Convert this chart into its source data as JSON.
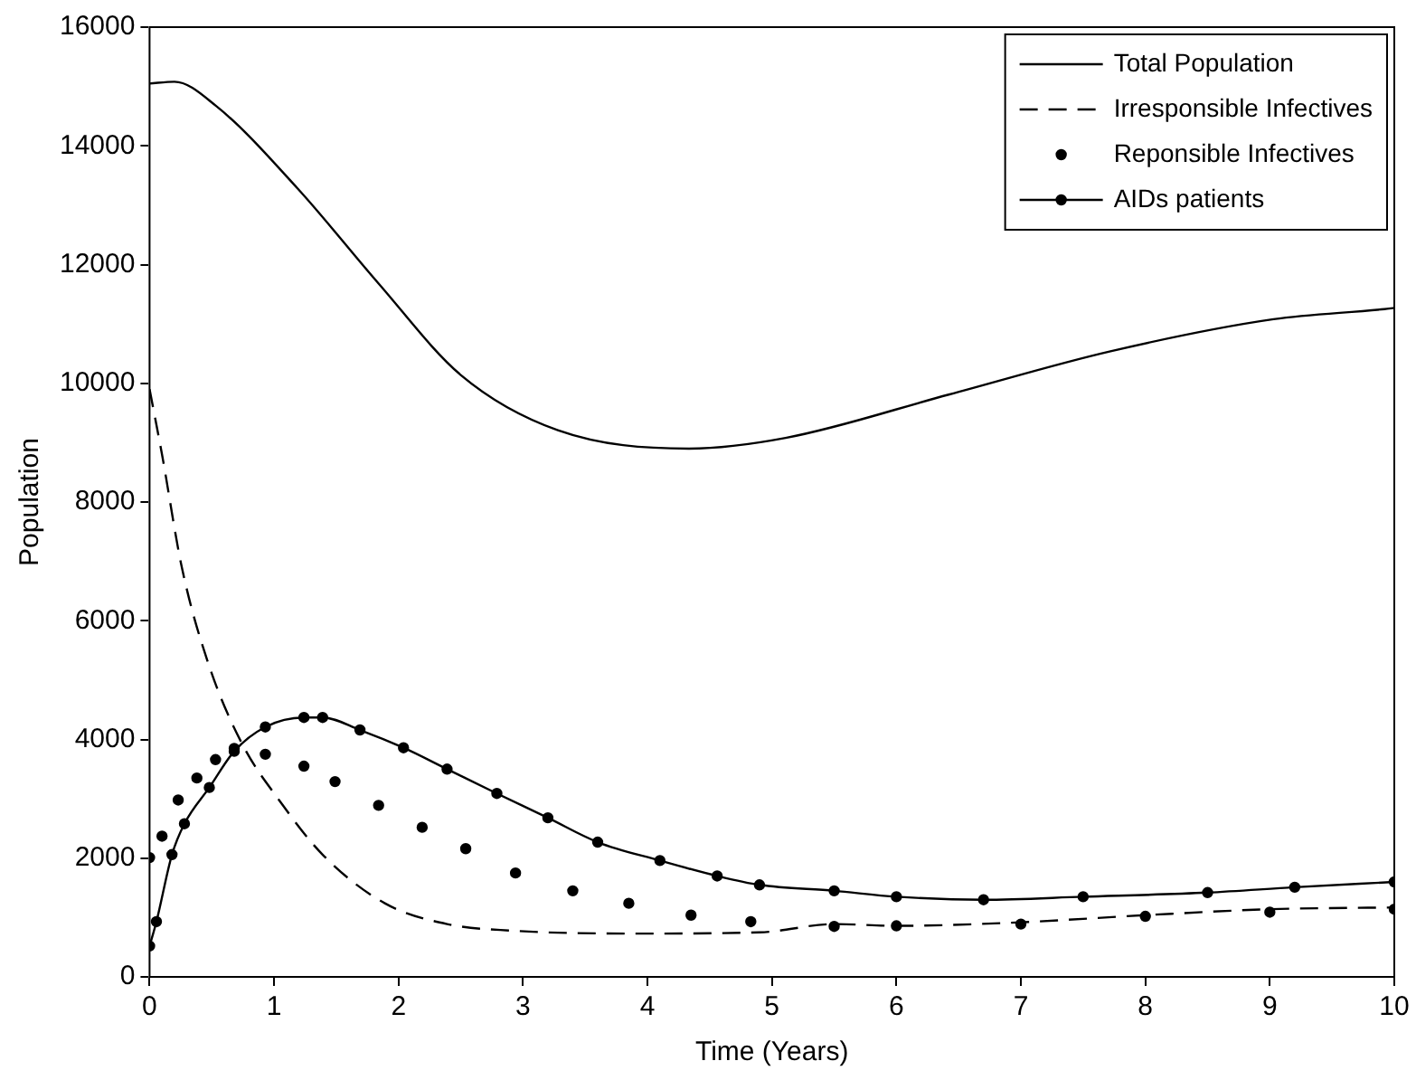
{
  "chart_data": {
    "type": "line",
    "xlabel": "Time (Years)",
    "ylabel": "Population",
    "xlim": [
      0,
      10
    ],
    "xticks": [
      0,
      1,
      2,
      3,
      4,
      5,
      6,
      7,
      8,
      9,
      10
    ],
    "ylim": [
      0,
      16000
    ],
    "yticks": [
      0,
      2000,
      4000,
      6000,
      8000,
      10000,
      12000,
      14000,
      16000
    ],
    "grid": false,
    "legend": "top right",
    "series": [
      {
        "name": "Total Population",
        "color": "#000000",
        "line_style": "solid",
        "marker": "none",
        "x": [
          0,
          0.2,
          0.53,
          1.19,
          1.84,
          2.5,
          3.28,
          4.33,
          5.11,
          6.42,
          7.72,
          9.03,
          9.92,
          10
        ],
        "values": [
          15050,
          15080,
          14680,
          13280,
          11680,
          10140,
          9210,
          8900,
          9080,
          9810,
          10540,
          11080,
          11250,
          11270
        ]
      },
      {
        "name": "Irresponsible Infectives",
        "color": "#000000",
        "line_style": "dashed",
        "marker": "none",
        "x": [
          0,
          0.1,
          0.26,
          0.48,
          0.75,
          1.04,
          1.39,
          1.89,
          2.39,
          2.9,
          3.9,
          4.9,
          5.5,
          6,
          7,
          8,
          9,
          10
        ],
        "values": [
          9900,
          8800,
          6890,
          5230,
          3900,
          2980,
          2060,
          1240,
          890,
          780,
          730,
          750,
          890,
          860,
          920,
          1040,
          1140,
          1170
        ]
      },
      {
        "name": "Reponsible Infectives",
        "type": "scatter",
        "color": "#000000",
        "marker": "circle",
        "x": [
          0,
          0.1,
          0.23,
          0.38,
          0.53,
          0.68,
          0.93,
          1.24,
          1.49,
          1.84,
          2.19,
          2.54,
          2.94,
          3.4,
          3.85,
          4.35,
          4.83,
          5.5,
          6,
          7,
          8,
          9,
          10
        ],
        "values": [
          2010,
          2370,
          2980,
          3350,
          3660,
          3850,
          3750,
          3550,
          3290,
          2890,
          2520,
          2160,
          1750,
          1450,
          1240,
          1040,
          930,
          850,
          860,
          890,
          1020,
          1090,
          1140
        ]
      },
      {
        "name": "AIDs patients",
        "color": "#000000",
        "line_style": "solid",
        "marker": "circle",
        "x": [
          0,
          0.055,
          0.18,
          0.28,
          0.48,
          0.68,
          0.93,
          1.24,
          1.39,
          1.69,
          2.04,
          2.39,
          2.79,
          3.2,
          3.6,
          4.1,
          4.56,
          4.9,
          5.5,
          6,
          6.7,
          7.5,
          8.5,
          9.2,
          10
        ],
        "values": [
          520,
          930,
          2060,
          2580,
          3190,
          3800,
          4210,
          4370,
          4370,
          4160,
          3860,
          3500,
          3090,
          2680,
          2270,
          1960,
          1700,
          1550,
          1450,
          1350,
          1300,
          1350,
          1420,
          1510,
          1600
        ]
      }
    ]
  }
}
